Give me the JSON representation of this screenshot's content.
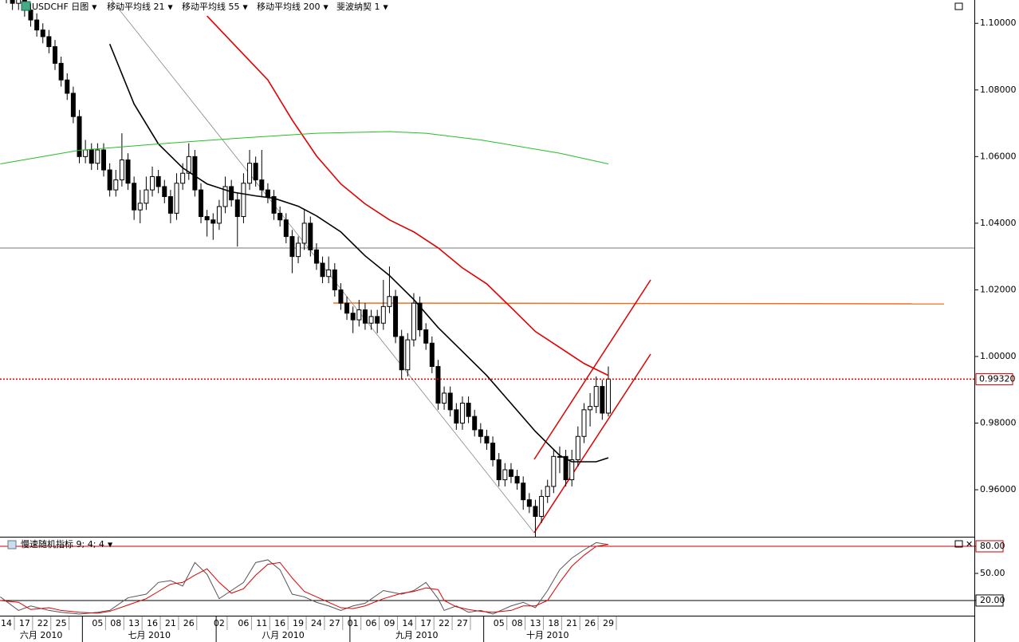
{
  "header": {
    "symbol": "USDCHF 日图",
    "fib": "斐波纳契 1"
  },
  "chart_data": [
    {
      "type": "candlestick",
      "ohlc": [
        [
          1.11,
          1.112,
          1.106,
          1.108
        ],
        [
          1.108,
          1.11,
          1.104,
          1.106
        ],
        [
          1.106,
          1.111,
          1.104,
          1.109
        ],
        [
          1.109,
          1.111,
          1.102,
          1.104
        ],
        [
          1.104,
          1.106,
          1.099,
          1.101
        ],
        [
          1.101,
          1.103,
          1.096,
          1.098
        ],
        [
          1.098,
          1.1,
          1.094,
          1.096
        ],
        [
          1.096,
          1.098,
          1.091,
          1.093
        ],
        [
          1.093,
          1.095,
          1.086,
          1.088
        ],
        [
          1.088,
          1.09,
          1.081,
          1.083
        ],
        [
          1.083,
          1.085,
          1.077,
          1.079
        ],
        [
          1.079,
          1.081,
          1.07,
          1.072
        ],
        [
          1.072,
          1.074,
          1.058,
          1.06
        ],
        [
          1.06,
          1.065,
          1.058,
          1.062
        ],
        [
          1.062,
          1.064,
          1.056,
          1.058
        ],
        [
          1.058,
          1.064,
          1.056,
          1.062
        ],
        [
          1.062,
          1.064,
          1.054,
          1.056
        ],
        [
          1.056,
          1.058,
          1.048,
          1.05
        ],
        [
          1.05,
          1.056,
          1.048,
          1.053
        ],
        [
          1.053,
          1.067,
          1.051,
          1.059
        ],
        [
          1.059,
          1.061,
          1.05,
          1.052
        ],
        [
          1.052,
          1.054,
          1.041,
          1.044
        ],
        [
          1.044,
          1.05,
          1.04,
          1.046
        ],
        [
          1.046,
          1.054,
          1.044,
          1.05
        ],
        [
          1.05,
          1.057,
          1.048,
          1.054
        ],
        [
          1.054,
          1.056,
          1.049,
          1.051
        ],
        [
          1.051,
          1.053,
          1.046,
          1.048
        ],
        [
          1.048,
          1.05,
          1.04,
          1.043
        ],
        [
          1.043,
          1.055,
          1.041,
          1.052
        ],
        [
          1.052,
          1.058,
          1.05,
          1.055
        ],
        [
          1.055,
          1.064,
          1.053,
          1.06
        ],
        [
          1.06,
          1.062,
          1.048,
          1.05
        ],
        [
          1.05,
          1.052,
          1.04,
          1.042
        ],
        [
          1.042,
          1.044,
          1.036,
          1.041
        ],
        [
          1.041,
          1.043,
          1.035,
          1.04
        ],
        [
          1.04,
          1.047,
          1.038,
          1.045
        ],
        [
          1.045,
          1.054,
          1.043,
          1.051
        ],
        [
          1.051,
          1.053,
          1.045,
          1.047
        ],
        [
          1.047,
          1.049,
          1.033,
          1.042
        ],
        [
          1.042,
          1.055,
          1.04,
          1.052
        ],
        [
          1.052,
          1.062,
          1.05,
          1.058
        ],
        [
          1.058,
          1.06,
          1.051,
          1.053
        ],
        [
          1.053,
          1.062,
          1.048,
          1.05
        ],
        [
          1.05,
          1.052,
          1.046,
          1.048
        ],
        [
          1.048,
          1.05,
          1.041,
          1.043
        ],
        [
          1.043,
          1.045,
          1.039,
          1.041
        ],
        [
          1.041,
          1.043,
          1.034,
          1.036
        ],
        [
          1.036,
          1.038,
          1.025,
          1.03
        ],
        [
          1.03,
          1.036,
          1.028,
          1.034
        ],
        [
          1.034,
          1.044,
          1.032,
          1.04
        ],
        [
          1.04,
          1.042,
          1.03,
          1.032
        ],
        [
          1.032,
          1.034,
          1.026,
          1.028
        ],
        [
          1.028,
          1.03,
          1.022,
          1.024
        ],
        [
          1.024,
          1.03,
          1.022,
          1.026
        ],
        [
          1.026,
          1.028,
          1.018,
          1.02
        ],
        [
          1.02,
          1.022,
          1.014,
          1.016
        ],
        [
          1.016,
          1.018,
          1.011,
          1.013
        ],
        [
          1.013,
          1.015,
          1.007,
          1.011
        ],
        [
          1.011,
          1.017,
          1.009,
          1.014
        ],
        [
          1.014,
          1.016,
          1.008,
          1.01
        ],
        [
          1.01,
          1.014,
          1.008,
          1.012
        ],
        [
          1.012,
          1.014,
          1.007,
          1.01
        ],
        [
          1.01,
          1.023,
          1.008,
          1.015
        ],
        [
          1.015,
          1.027,
          1.013,
          1.018
        ],
        [
          1.018,
          1.02,
          1.004,
          1.006
        ],
        [
          1.006,
          1.008,
          0.993,
          0.996
        ],
        [
          0.996,
          1.007,
          0.994,
          1.005
        ],
        [
          1.005,
          1.019,
          1.003,
          1.016
        ],
        [
          1.016,
          1.018,
          1.006,
          1.008
        ],
        [
          1.008,
          1.01,
          1.002,
          1.004
        ],
        [
          1.004,
          1.006,
          0.995,
          0.997
        ],
        [
          0.997,
          0.999,
          0.984,
          0.986
        ],
        [
          0.986,
          0.991,
          0.984,
          0.989
        ],
        [
          0.989,
          0.991,
          0.982,
          0.984
        ],
        [
          0.984,
          0.986,
          0.978,
          0.98
        ],
        [
          0.98,
          0.988,
          0.978,
          0.986
        ],
        [
          0.986,
          0.988,
          0.98,
          0.982
        ],
        [
          0.982,
          0.984,
          0.976,
          0.978
        ],
        [
          0.978,
          0.98,
          0.974,
          0.976
        ],
        [
          0.976,
          0.978,
          0.972,
          0.974
        ],
        [
          0.974,
          0.976,
          0.967,
          0.969
        ],
        [
          0.969,
          0.971,
          0.961,
          0.963
        ],
        [
          0.963,
          0.968,
          0.961,
          0.966
        ],
        [
          0.966,
          0.968,
          0.962,
          0.964
        ],
        [
          0.964,
          0.966,
          0.96,
          0.962
        ],
        [
          0.962,
          0.964,
          0.954,
          0.957
        ],
        [
          0.957,
          0.959,
          0.953,
          0.955
        ],
        [
          0.955,
          0.957,
          0.945,
          0.952
        ],
        [
          0.952,
          0.96,
          0.95,
          0.958
        ],
        [
          0.958,
          0.963,
          0.956,
          0.961
        ],
        [
          0.961,
          0.972,
          0.959,
          0.97
        ],
        [
          0.97,
          0.973,
          0.965,
          0.97
        ],
        [
          0.97,
          0.972,
          0.961,
          0.963
        ],
        [
          0.963,
          0.972,
          0.961,
          0.969
        ],
        [
          0.969,
          0.979,
          0.967,
          0.976
        ],
        [
          0.976,
          0.986,
          0.974,
          0.984
        ],
        [
          0.984,
          0.989,
          0.979,
          0.985
        ],
        [
          0.985,
          0.994,
          0.983,
          0.991
        ],
        [
          0.991,
          0.993,
          0.981,
          0.983
        ],
        [
          0.983,
          0.997,
          0.982,
          0.9932
        ]
      ],
      "series": [
        {
          "name": "移动平均线 21",
          "color": "#000000",
          "x": [
            17,
            21,
            25,
            29,
            33,
            37,
            41,
            44,
            48,
            51,
            55,
            59,
            63,
            67,
            71,
            75,
            79,
            83,
            87,
            91,
            93,
            97,
            99
          ],
          "values": [
            1.0938,
            1.0758,
            1.0638,
            1.0566,
            1.0518,
            1.0494,
            1.0482,
            1.0475,
            1.0451,
            1.0422,
            1.0374,
            1.0302,
            1.0243,
            1.0171,
            1.0087,
            1.0015,
            0.9943,
            0.9859,
            0.9775,
            0.9703,
            0.9684,
            0.9684,
            0.9696
          ]
        },
        {
          "name": "移动平均线 55",
          "color": "#e00000",
          "x": [
            33,
            38,
            43,
            47,
            51,
            55,
            59,
            63,
            67,
            71,
            75,
            79,
            83,
            87,
            91,
            95,
            99
          ],
          "values": [
            1.1022,
            1.0926,
            1.083,
            1.071,
            1.0602,
            1.0518,
            1.0458,
            1.041,
            1.0374,
            1.0326,
            1.0266,
            1.0218,
            1.0147,
            1.0075,
            1.0027,
            0.9979,
            0.9943
          ]
        },
        {
          "name": "移动平均线 200",
          "color": "#22c022",
          "x": [
            -1,
            12,
            25,
            38,
            51,
            63,
            69,
            78,
            91,
            99
          ],
          "values": [
            1.0578,
            1.0619,
            1.0638,
            1.0655,
            1.067,
            1.0675,
            1.067,
            1.065,
            1.061,
            1.0578
          ]
        }
      ],
      "last_price": {
        "value": 0.9932,
        "label": "0.99320",
        "color": "#cc0000"
      },
      "ylim": [
        0.9459,
        1.107
      ],
      "yticks": [
        {
          "value": 1.1,
          "label": "1.10000"
        },
        {
          "value": 1.08,
          "label": "1.08000"
        },
        {
          "value": 1.06,
          "label": "1.06000"
        },
        {
          "value": 1.04,
          "label": "1.04000"
        },
        {
          "value": 1.02,
          "label": "1.02000"
        },
        {
          "value": 1.0,
          "label": "1.00000"
        },
        {
          "value": 0.98,
          "label": "0.98000"
        },
        {
          "value": 0.96,
          "label": "0.96000"
        }
      ],
      "xticks": [
        {
          "value": 0,
          "label": "14"
        },
        {
          "value": 3,
          "label": "17"
        },
        {
          "value": 6,
          "label": "22"
        },
        {
          "value": 9,
          "label": "25"
        },
        {
          "value": 15,
          "label": "05"
        },
        {
          "value": 18,
          "label": "08"
        },
        {
          "value": 21,
          "label": "13"
        },
        {
          "value": 24,
          "label": "16"
        },
        {
          "value": 27,
          "label": "21"
        },
        {
          "value": 30,
          "label": "26"
        },
        {
          "value": 35,
          "label": "02"
        },
        {
          "value": 39,
          "label": "06"
        },
        {
          "value": 42,
          "label": "11"
        },
        {
          "value": 45,
          "label": "16"
        },
        {
          "value": 48,
          "label": "19"
        },
        {
          "value": 51,
          "label": "24"
        },
        {
          "value": 54,
          "label": "27"
        },
        {
          "value": 57,
          "label": "01"
        },
        {
          "value": 60,
          "label": "06"
        },
        {
          "value": 63,
          "label": "09"
        },
        {
          "value": 66,
          "label": "14"
        },
        {
          "value": 69,
          "label": "17"
        },
        {
          "value": 72,
          "label": "22"
        },
        {
          "value": 75,
          "label": "27"
        },
        {
          "value": 81,
          "label": "05"
        },
        {
          "value": 84,
          "label": "08"
        },
        {
          "value": 87,
          "label": "13"
        },
        {
          "value": 90,
          "label": "18"
        },
        {
          "value": 93,
          "label": "21"
        },
        {
          "value": 96,
          "label": "26"
        },
        {
          "value": 99,
          "label": "29"
        }
      ],
      "months": [
        {
          "value": -9,
          "label": "六月 2010"
        },
        {
          "value": 13,
          "label": "七月 2010"
        },
        {
          "value": 35,
          "label": "八月 2010"
        },
        {
          "value": 57,
          "label": "九月 2010"
        },
        {
          "value": 79,
          "label": "十月 2010"
        }
      ]
    },
    {
      "type": "line",
      "title": "慢速随机指标 9; 4; 4",
      "x": [
        -1,
        2,
        4,
        7,
        9,
        12,
        15,
        17,
        20,
        23,
        25,
        27,
        29,
        31,
        33,
        35,
        37,
        39,
        41,
        43,
        45,
        47,
        49,
        51,
        53,
        55,
        57,
        59,
        62,
        65,
        67,
        69,
        71,
        72,
        74,
        76,
        78,
        80,
        83,
        85,
        87,
        89,
        91,
        93,
        95,
        97,
        99
      ],
      "series": [
        {
          "color": "#555555",
          "values": [
            24,
            9,
            14,
            9,
            7,
            5,
            7,
            9,
            23,
            27,
            40,
            42,
            36,
            62,
            49,
            22,
            31,
            40,
            62,
            65,
            54,
            27,
            24,
            18,
            14,
            9,
            14,
            17,
            31,
            27,
            31,
            40,
            22,
            9,
            14,
            7,
            9,
            5,
            14,
            18,
            12,
            31,
            54,
            67,
            76,
            84,
            82
          ]
        },
        {
          "color": "#e00000",
          "values": [
            20,
            18,
            10,
            12,
            9,
            7,
            6,
            8,
            15,
            22,
            30,
            38,
            40,
            48,
            55,
            40,
            28,
            33,
            48,
            60,
            62,
            45,
            30,
            24,
            18,
            12,
            11,
            14,
            22,
            28,
            30,
            34,
            32,
            20,
            13,
            10,
            8,
            7,
            9,
            14,
            14,
            20,
            40,
            58,
            70,
            80,
            82
          ]
        }
      ],
      "ylim": [
        3.2,
        88.8
      ],
      "yticks": [
        {
          "value": 80,
          "label": "80.00"
        },
        {
          "value": 50,
          "label": "50.00"
        },
        {
          "value": 20,
          "label": "20.00"
        }
      ],
      "levels": [
        {
          "value": 80,
          "color": "#cc0000"
        },
        {
          "value": 20,
          "color": "#000000"
        }
      ]
    }
  ]
}
